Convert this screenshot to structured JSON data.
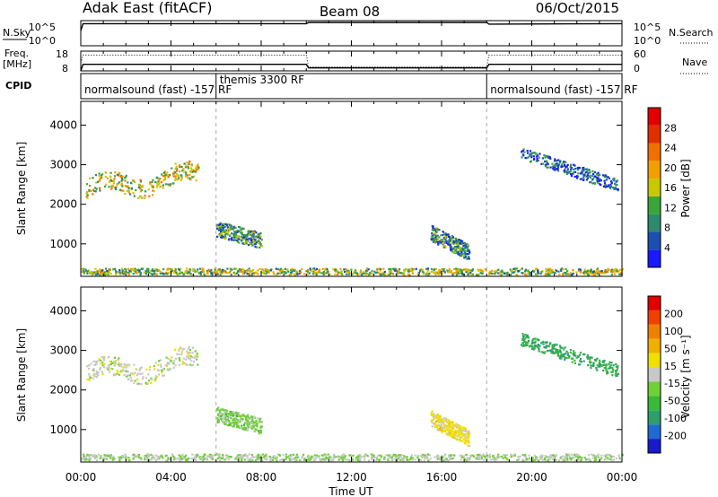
{
  "header": {
    "station": "Adak East (fitACF)",
    "beam": "Beam 08",
    "date": "06/Oct/2015"
  },
  "labels": {
    "nsky": "N.Sky",
    "nsearch": "N.Search",
    "freq": "Freq.",
    "freq_unit": "[MHz]",
    "nave": "Nave",
    "cpid": "CPID",
    "x_axis": "Time UT",
    "y_axis": "Slant Range [km]",
    "power_label": "Power [dB]",
    "velocity_label": "Velocity [m s⁻¹]"
  },
  "noise_ticks": {
    "left": [
      "10^5",
      "10^0"
    ],
    "right": [
      "10^5",
      "10^0"
    ]
  },
  "freq_ticks": {
    "left": [
      "18",
      "8"
    ],
    "right": [
      "60",
      "0"
    ]
  },
  "cpid_segments": [
    {
      "start": 0,
      "end": 6,
      "label": "normalsound (fast) -157 RF"
    },
    {
      "start": 6,
      "end": 18,
      "label": "themis 3300 RF"
    },
    {
      "start": 18,
      "end": 24,
      "label": "normalsound (fast) -157 RF"
    }
  ],
  "time_ticks": [
    "00:00",
    "04:00",
    "08:00",
    "12:00",
    "16:00",
    "20:00",
    "00:00"
  ],
  "range_ticks": [
    "1000",
    "2000",
    "3000",
    "4000"
  ],
  "power_scale": {
    "ticks": [
      "4",
      "8",
      "12",
      "16",
      "20",
      "24",
      "28"
    ],
    "colors": [
      "#1a1aff",
      "#1b4fb0",
      "#2d8a6e",
      "#3aa63a",
      "#c8c800",
      "#f0a000",
      "#f07000",
      "#e03000",
      "#e00000"
    ]
  },
  "velocity_scale": {
    "ticks": [
      "200",
      "100",
      "50",
      "15",
      "-15",
      "-50",
      "-100",
      "-200"
    ],
    "colors": [
      "#1a1acc",
      "#1f6ad0",
      "#2da06a",
      "#3ab838",
      "#6fd038",
      "#c8c8c8",
      "#f0e000",
      "#f0b000",
      "#f08000",
      "#f04000",
      "#e00000"
    ]
  },
  "chart_data": [
    {
      "type": "line",
      "title": "N.Sky / N.Search",
      "x": [
        0,
        0.1,
        6,
        10,
        10.1,
        18,
        18.1,
        24
      ],
      "series": [
        {
          "name": "N.Sky",
          "values": [
            60,
            88,
            88,
            88,
            93,
            93,
            86,
            88
          ]
        }
      ],
      "ylim": [
        0,
        100
      ]
    },
    {
      "type": "line",
      "title": "Freq. / Nave",
      "x": [
        0,
        0.1,
        10,
        10.1,
        18,
        18.1,
        24
      ],
      "series": [
        {
          "name": "Freq.",
          "values": [
            8,
            11.3,
            11.3,
            9.5,
            9.5,
            11.3,
            11.3
          ]
        },
        {
          "name": "Nave",
          "values": [
            12,
            16,
            16,
            10,
            10,
            16,
            16
          ]
        }
      ],
      "ylim": [
        8,
        18
      ]
    },
    {
      "type": "heatmap",
      "title": "Power [dB]",
      "xlabel": "Time UT",
      "ylabel": "Slant Range [km]",
      "xlim": [
        0,
        24
      ],
      "ylim": [
        180,
        4600
      ],
      "regions": [
        {
          "t0": 0.2,
          "t1": 5.2,
          "r_mid_start": 2400,
          "r_mid_end": 2750,
          "width": 300,
          "value": 16
        },
        {
          "t0": 6.0,
          "t1": 8.0,
          "r_mid_start": 1400,
          "r_mid_end": 1100,
          "width": 250,
          "value": 10
        },
        {
          "t0": 15.5,
          "t1": 17.2,
          "r_mid_start": 1300,
          "r_mid_end": 800,
          "width": 250,
          "value": 9
        },
        {
          "t0": 19.5,
          "t1": 23.8,
          "r_mid_start": 3300,
          "r_mid_end": 2500,
          "width": 200,
          "value": 6
        },
        {
          "t0": 0.0,
          "t1": 24.0,
          "r_mid_start": 320,
          "r_mid_end": 320,
          "width": 160,
          "value": 14
        }
      ]
    },
    {
      "type": "heatmap",
      "title": "Velocity [m s-1]",
      "xlabel": "Time UT",
      "ylabel": "Slant Range [km]",
      "xlim": [
        0,
        24
      ],
      "ylim": [
        180,
        4600
      ],
      "regions": [
        {
          "t0": 0.2,
          "t1": 5.2,
          "r_mid_start": 2400,
          "r_mid_end": 2750,
          "width": 300,
          "value": 0
        },
        {
          "t0": 6.0,
          "t1": 8.0,
          "r_mid_start": 1400,
          "r_mid_end": 1100,
          "width": 250,
          "value": 40
        },
        {
          "t0": 15.5,
          "t1": 17.2,
          "r_mid_start": 1300,
          "r_mid_end": 800,
          "width": 250,
          "value": -40
        },
        {
          "t0": 19.5,
          "t1": 23.8,
          "r_mid_start": 3300,
          "r_mid_end": 2500,
          "width": 200,
          "value": 120
        },
        {
          "t0": 0.0,
          "t1": 24.0,
          "r_mid_start": 320,
          "r_mid_end": 320,
          "width": 160,
          "value": 20
        }
      ]
    }
  ]
}
